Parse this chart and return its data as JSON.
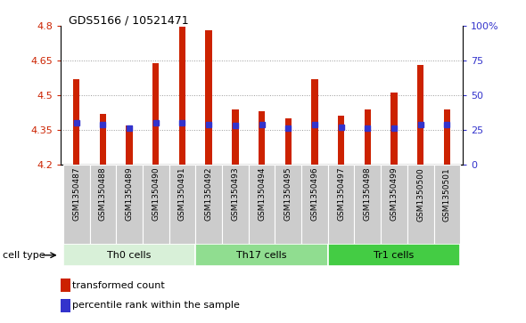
{
  "title": "GDS5166 / 10521471",
  "samples": [
    "GSM1350487",
    "GSM1350488",
    "GSM1350489",
    "GSM1350490",
    "GSM1350491",
    "GSM1350492",
    "GSM1350493",
    "GSM1350494",
    "GSM1350495",
    "GSM1350496",
    "GSM1350497",
    "GSM1350498",
    "GSM1350499",
    "GSM1350500",
    "GSM1350501"
  ],
  "bar_values": [
    4.57,
    4.42,
    4.37,
    4.64,
    4.795,
    4.78,
    4.44,
    4.43,
    4.4,
    4.57,
    4.41,
    4.44,
    4.51,
    4.63,
    4.44
  ],
  "percentile_values": [
    4.382,
    4.372,
    4.358,
    4.383,
    4.382,
    4.372,
    4.368,
    4.372,
    4.358,
    4.372,
    4.362,
    4.36,
    4.358,
    4.372,
    4.372
  ],
  "ylim": [
    4.2,
    4.8
  ],
  "y_ticks": [
    4.2,
    4.35,
    4.5,
    4.65,
    4.8
  ],
  "y2_ticks": [
    0,
    25,
    50,
    75,
    100
  ],
  "y2_labels": [
    "0",
    "25",
    "50",
    "75",
    "100%"
  ],
  "bar_color": "#cc2200",
  "percentile_color": "#3333cc",
  "cell_types": [
    {
      "label": "Th0 cells",
      "start": 0,
      "end": 5,
      "color": "#d8f0d8"
    },
    {
      "label": "Th17 cells",
      "start": 5,
      "end": 10,
      "color": "#90dd90"
    },
    {
      "label": "Tr1 cells",
      "start": 10,
      "end": 15,
      "color": "#44cc44"
    }
  ],
  "legend_items": [
    {
      "label": "transformed count",
      "color": "#cc2200"
    },
    {
      "label": "percentile rank within the sample",
      "color": "#3333cc"
    }
  ],
  "ylabel_color": "#cc2200",
  "y2label_color": "#3333cc",
  "cell_type_label": "cell type",
  "xtick_bg_color": "#cccccc",
  "base_value": 4.2,
  "bar_width": 0.25
}
